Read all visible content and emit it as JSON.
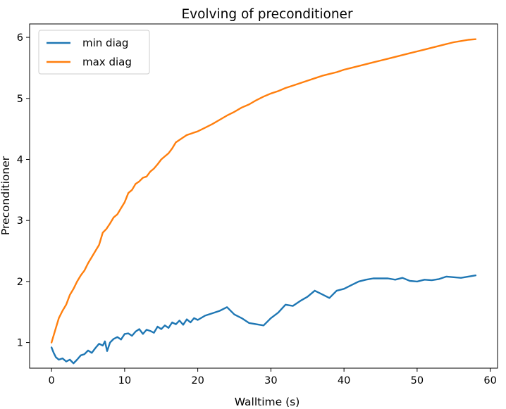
{
  "chart_data": {
    "type": "line",
    "title": "Evolving of preconditioner",
    "xlabel": "Walltime (s)",
    "ylabel": "Preconditioner",
    "xlim": [
      -3,
      61
    ],
    "ylim": [
      0.58,
      6.22
    ],
    "xticks": [
      0,
      10,
      20,
      30,
      40,
      50,
      60
    ],
    "yticks": [
      1,
      2,
      3,
      4,
      5,
      6
    ],
    "grid": false,
    "legend_position": "top-left",
    "series": [
      {
        "name": "min diag",
        "color": "#1f77b4",
        "x": [
          0,
          0.3,
          0.6,
          1,
          1.5,
          2,
          2.5,
          3,
          3.5,
          4,
          4.5,
          5,
          5.5,
          6,
          6.5,
          7,
          7.3,
          7.6,
          8,
          8.5,
          9,
          9.5,
          10,
          10.5,
          11,
          11.5,
          12,
          12.5,
          13,
          13.5,
          14,
          14.5,
          15,
          15.5,
          16,
          16.5,
          17,
          17.5,
          18,
          18.5,
          19,
          19.5,
          20,
          21,
          22,
          23,
          24,
          25,
          26,
          27,
          28,
          29,
          30,
          31,
          32,
          33,
          34,
          35,
          36,
          37,
          38,
          39,
          40,
          41,
          42,
          43,
          44,
          45,
          46,
          47,
          48,
          49,
          50,
          51,
          52,
          53,
          54,
          55,
          56,
          57,
          58
        ],
        "values": [
          0.92,
          0.83,
          0.76,
          0.72,
          0.74,
          0.69,
          0.72,
          0.66,
          0.72,
          0.79,
          0.81,
          0.87,
          0.83,
          0.91,
          0.98,
          0.95,
          1.02,
          0.86,
          1.0,
          1.06,
          1.09,
          1.05,
          1.14,
          1.15,
          1.11,
          1.18,
          1.22,
          1.14,
          1.21,
          1.19,
          1.16,
          1.26,
          1.22,
          1.28,
          1.24,
          1.33,
          1.3,
          1.36,
          1.29,
          1.38,
          1.33,
          1.4,
          1.37,
          1.44,
          1.48,
          1.52,
          1.58,
          1.46,
          1.4,
          1.32,
          1.3,
          1.28,
          1.4,
          1.49,
          1.62,
          1.6,
          1.68,
          1.75,
          1.85,
          1.79,
          1.73,
          1.85,
          1.88,
          1.94,
          2.0,
          2.03,
          2.05,
          2.05,
          2.05,
          2.03,
          2.06,
          2.01,
          2.0,
          2.03,
          2.02,
          2.04,
          2.08,
          2.07,
          2.06,
          2.08,
          2.1
        ]
      },
      {
        "name": "max diag",
        "color": "#ff7f0e",
        "x": [
          0,
          0.5,
          1,
          1.5,
          2,
          2.5,
          3,
          3.5,
          4,
          4.5,
          5,
          5.5,
          6,
          6.5,
          7,
          7.5,
          8,
          8.5,
          9,
          9.5,
          10,
          10.5,
          11,
          11.5,
          12,
          12.5,
          13,
          13.5,
          14,
          14.5,
          15,
          15.5,
          16,
          16.5,
          17,
          17.5,
          18,
          18.5,
          19,
          19.5,
          20,
          21,
          22,
          23,
          24,
          25,
          26,
          27,
          28,
          29,
          30,
          31,
          32,
          33,
          34,
          35,
          36,
          37,
          38,
          39,
          40,
          41,
          42,
          43,
          44,
          45,
          46,
          47,
          48,
          49,
          50,
          51,
          52,
          53,
          54,
          55,
          56,
          57,
          58
        ],
        "values": [
          1.0,
          1.2,
          1.4,
          1.52,
          1.62,
          1.78,
          1.88,
          2.0,
          2.1,
          2.18,
          2.3,
          2.4,
          2.5,
          2.6,
          2.8,
          2.86,
          2.95,
          3.05,
          3.1,
          3.2,
          3.3,
          3.45,
          3.5,
          3.6,
          3.64,
          3.7,
          3.72,
          3.8,
          3.85,
          3.92,
          4.0,
          4.05,
          4.1,
          4.18,
          4.28,
          4.32,
          4.36,
          4.4,
          4.42,
          4.44,
          4.46,
          4.52,
          4.58,
          4.65,
          4.72,
          4.78,
          4.85,
          4.9,
          4.97,
          5.03,
          5.08,
          5.12,
          5.17,
          5.21,
          5.25,
          5.29,
          5.33,
          5.37,
          5.4,
          5.43,
          5.47,
          5.5,
          5.53,
          5.56,
          5.59,
          5.62,
          5.65,
          5.68,
          5.71,
          5.74,
          5.77,
          5.8,
          5.83,
          5.86,
          5.89,
          5.92,
          5.94,
          5.96,
          5.97
        ]
      }
    ]
  }
}
